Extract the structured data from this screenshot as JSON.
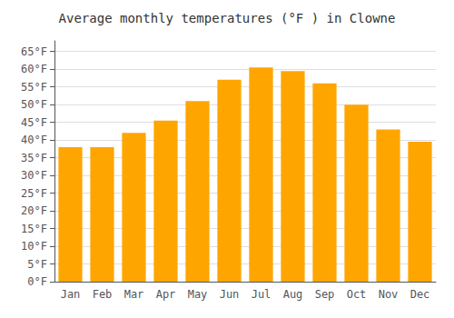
{
  "chart_data": {
    "type": "bar",
    "title": "Average monthly temperatures (°F ) in Clowne",
    "categories": [
      "Jan",
      "Feb",
      "Mar",
      "Apr",
      "May",
      "Jun",
      "Jul",
      "Aug",
      "Sep",
      "Oct",
      "Nov",
      "Dec"
    ],
    "values": [
      38,
      38,
      42,
      45.5,
      51,
      57,
      60.5,
      59.5,
      56,
      50,
      43,
      39.5
    ],
    "color": "#FFA500",
    "ylim": [
      0,
      68
    ],
    "yticks": [
      {
        "value": 0,
        "label": "0°F"
      },
      {
        "value": 5,
        "label": "5°F"
      },
      {
        "value": 10,
        "label": "10°F"
      },
      {
        "value": 15,
        "label": "15°F"
      },
      {
        "value": 20,
        "label": "20°F"
      },
      {
        "value": 25,
        "label": "25°F"
      },
      {
        "value": 30,
        "label": "30°F"
      },
      {
        "value": 35,
        "label": "35°F"
      },
      {
        "value": 40,
        "label": "40°F"
      },
      {
        "value": 45,
        "label": "45°F"
      },
      {
        "value": 50,
        "label": "50°F"
      },
      {
        "value": 55,
        "label": "55°F"
      },
      {
        "value": 60,
        "label": "60°F"
      },
      {
        "value": 65,
        "label": "65°F"
      }
    ],
    "grid": true
  }
}
